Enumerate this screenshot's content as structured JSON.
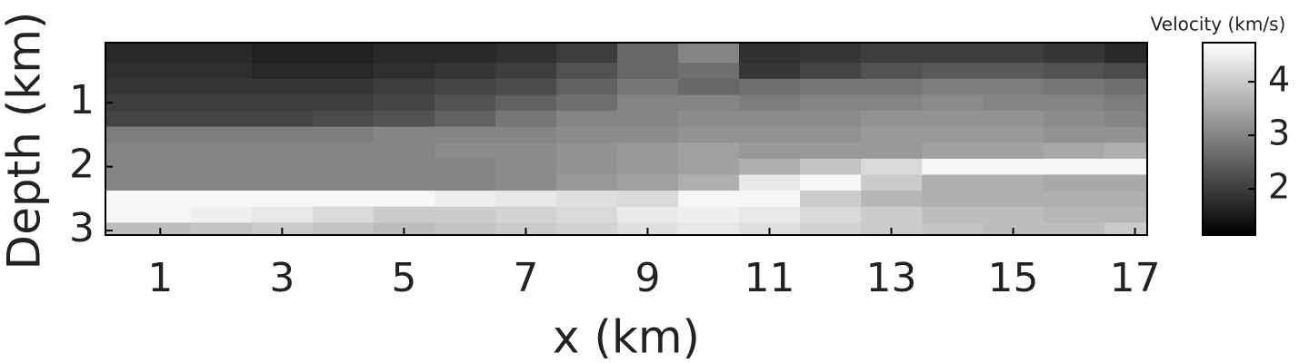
{
  "chart_data": {
    "type": "heatmap",
    "xlabel": "x (km)",
    "ylabel": "Depth (km)",
    "colorbar_label": "Velocity (km/s)",
    "colormap": "gray",
    "y_inverted": true,
    "xlim": [
      0.1,
      17.2
    ],
    "xticks": [
      1,
      3,
      5,
      7,
      9,
      11,
      13,
      15,
      17
    ],
    "ylim": [
      0.06,
      3.07
    ],
    "yticks": [
      1,
      2,
      3
    ],
    "clim": [
      1.14,
      4.73
    ],
    "cticks": [
      2,
      3,
      4
    ],
    "x": [
      1,
      2,
      3,
      4,
      5,
      6,
      7,
      8,
      9,
      10,
      11,
      12,
      13,
      14,
      15,
      16,
      17
    ],
    "y": [
      0.25,
      0.5,
      0.75,
      1.0,
      1.25,
      1.5,
      1.75,
      2.0,
      2.25,
      2.5,
      2.75,
      3.0
    ],
    "z": [
      [
        1.7,
        1.7,
        1.6,
        1.6,
        1.7,
        1.7,
        1.8,
        2.0,
        2.6,
        3.0,
        1.8,
        1.9,
        2.0,
        2.0,
        2.0,
        1.9,
        1.7
      ],
      [
        1.8,
        1.8,
        1.7,
        1.7,
        1.8,
        1.9,
        2.0,
        2.3,
        2.6,
        2.7,
        1.9,
        2.1,
        2.3,
        2.4,
        2.4,
        2.3,
        2.2
      ],
      [
        1.9,
        1.9,
        1.9,
        1.9,
        2.0,
        2.1,
        2.2,
        2.5,
        2.8,
        2.6,
        2.7,
        2.8,
        2.8,
        2.9,
        2.9,
        2.8,
        2.7
      ],
      [
        2.0,
        2.0,
        2.0,
        2.0,
        2.1,
        2.3,
        2.5,
        2.7,
        3.0,
        3.0,
        2.9,
        3.0,
        3.0,
        3.1,
        3.0,
        3.0,
        2.9
      ],
      [
        2.1,
        2.1,
        2.1,
        2.2,
        2.3,
        2.5,
        2.8,
        3.0,
        3.0,
        3.1,
        3.1,
        3.1,
        3.2,
        3.2,
        3.2,
        3.1,
        3.0
      ],
      [
        2.9,
        2.9,
        2.9,
        2.9,
        3.0,
        3.0,
        3.0,
        3.1,
        3.1,
        3.2,
        3.2,
        3.2,
        3.3,
        3.3,
        3.3,
        3.2,
        3.2
      ],
      [
        3.0,
        3.0,
        3.0,
        3.0,
        3.0,
        3.1,
        3.1,
        3.2,
        3.3,
        3.4,
        3.3,
        3.3,
        3.3,
        3.4,
        3.4,
        3.5,
        3.6
      ],
      [
        3.0,
        3.0,
        3.0,
        3.0,
        3.0,
        3.0,
        3.1,
        3.2,
        3.3,
        3.4,
        3.6,
        3.9,
        4.2,
        4.6,
        4.6,
        4.6,
        4.6
      ],
      [
        3.0,
        3.0,
        3.0,
        3.0,
        3.0,
        3.0,
        3.1,
        3.3,
        3.4,
        3.6,
        4.4,
        4.6,
        4.0,
        3.6,
        3.6,
        3.5,
        3.5
      ],
      [
        4.6,
        4.6,
        4.6,
        4.6,
        4.6,
        4.5,
        4.4,
        4.3,
        4.2,
        4.6,
        4.6,
        4.0,
        3.7,
        3.6,
        3.6,
        3.6,
        3.6
      ],
      [
        4.6,
        4.5,
        4.4,
        4.2,
        4.0,
        4.0,
        4.1,
        4.2,
        4.4,
        4.5,
        4.4,
        4.2,
        4.0,
        3.8,
        3.8,
        3.7,
        3.7
      ],
      [
        3.8,
        3.9,
        4.0,
        3.9,
        3.8,
        3.9,
        4.0,
        4.1,
        4.3,
        4.4,
        4.3,
        4.1,
        4.0,
        3.9,
        3.8,
        3.8,
        4.0
      ]
    ]
  }
}
